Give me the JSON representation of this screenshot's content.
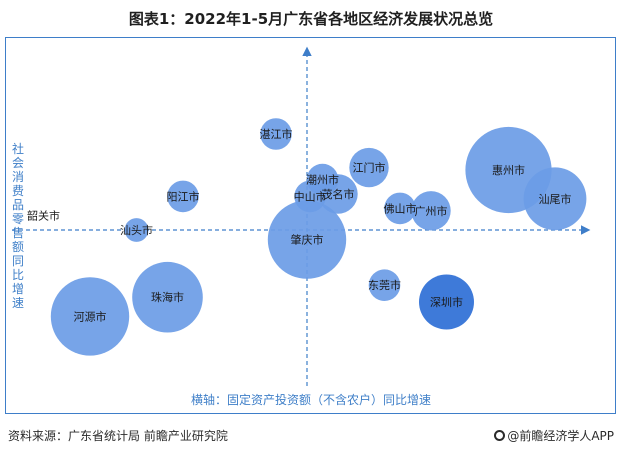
{
  "title": "图表1：2022年1-5月广东省各地区经济发展状况总览",
  "source": "资料来源：广东省统计局 前瞻产业研究院",
  "brand": "@前瞻经济学人APP",
  "colors": {
    "accent": "#3e7ec9",
    "bubble": "#6b9ce6",
    "bubble_dark": "#2e6fd6",
    "label": "#1a1a1a"
  },
  "chart_data": {
    "type": "bubble",
    "title": "图表1：2022年1-5月广东省各地区经济发展状况总览",
    "xlabel": "横轴：固定资产投资额（不含农户）同比增速",
    "ylabel": "社会消费品零售额同比增速",
    "axes": "quadrant, no tick labels",
    "grid": false,
    "points": [
      {
        "name": "湛江市",
        "x": -1.0,
        "y": 4.0,
        "size": 2,
        "color": "#6b9ce6"
      },
      {
        "name": "江门市",
        "x": 2.0,
        "y": 2.6,
        "size": 3,
        "color": "#6b9ce6"
      },
      {
        "name": "惠州市",
        "x": 6.5,
        "y": 2.5,
        "size": 9,
        "color": "#6b9ce6"
      },
      {
        "name": "潮州市",
        "x": 0.5,
        "y": 2.1,
        "size": 2,
        "color": "#6b9ce6"
      },
      {
        "name": "阳江市",
        "x": -4.0,
        "y": 1.4,
        "size": 2,
        "color": "#6b9ce6"
      },
      {
        "name": "中山市",
        "x": 0.1,
        "y": 1.4,
        "size": 2,
        "color": "#6b9ce6"
      },
      {
        "name": "茂名市",
        "x": 1.0,
        "y": 1.5,
        "size": 3,
        "color": "#6b9ce6"
      },
      {
        "name": "汕尾市",
        "x": 8.0,
        "y": 1.3,
        "size": 6,
        "color": "#6b9ce6"
      },
      {
        "name": "佛山市",
        "x": 3.0,
        "y": 0.9,
        "size": 2,
        "color": "#6b9ce6"
      },
      {
        "name": "广州市",
        "x": 4.0,
        "y": 0.8,
        "size": 3,
        "color": "#6b9ce6"
      },
      {
        "name": "韶关市",
        "x": -8.5,
        "y": 0.6,
        "size": 0,
        "color": "#6b9ce6"
      },
      {
        "name": "汕头市",
        "x": -5.5,
        "y": 0.0,
        "size": 1,
        "color": "#6b9ce6"
      },
      {
        "name": "肇庆市",
        "x": 0.0,
        "y": -0.4,
        "size": 8,
        "color": "#6b9ce6"
      },
      {
        "name": "东莞市",
        "x": 2.5,
        "y": -2.3,
        "size": 2,
        "color": "#6b9ce6"
      },
      {
        "name": "珠海市",
        "x": -4.5,
        "y": -2.8,
        "size": 7,
        "color": "#6b9ce6"
      },
      {
        "name": "深圳市",
        "x": 4.5,
        "y": -3.0,
        "size": 5,
        "color": "#2e6fd6"
      },
      {
        "name": "河源市",
        "x": -7.0,
        "y": -3.6,
        "size": 8,
        "color": "#6b9ce6"
      }
    ]
  }
}
